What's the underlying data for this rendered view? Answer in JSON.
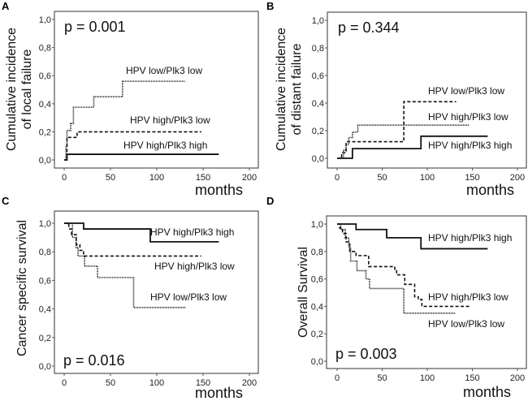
{
  "chart_data": [
    {
      "type": "line",
      "panel": "A",
      "ylabel_lines": [
        "Cumulative incidence",
        "of local failure"
      ],
      "xlabel": "months",
      "p_value": "p = 0.001",
      "xlim": [
        0,
        200
      ],
      "ylim": [
        0,
        1
      ],
      "xticks": [
        "0",
        "50",
        "100",
        "150",
        "200"
      ],
      "yticks": [
        "0,0",
        "0,2",
        "0,4",
        "0,6",
        "0,8",
        "1,0"
      ],
      "series": [
        {
          "name": "HPV low/Plk3 low",
          "style": "dotted",
          "steps": [
            [
              0,
              0
            ],
            [
              2,
              0.1
            ],
            [
              3,
              0.21
            ],
            [
              7,
              0.26
            ],
            [
              10,
              0.375
            ],
            [
              32,
              0.45
            ],
            [
              63,
              0.56
            ]
          ],
          "end": 131
        },
        {
          "name": "HPV high/Plk3 low",
          "style": "dashed",
          "steps": [
            [
              0,
              0
            ],
            [
              3,
              0.16
            ],
            [
              14,
              0.2
            ]
          ],
          "end": 148
        },
        {
          "name": "HPV high/Plk3 high",
          "style": "solid",
          "steps": [
            [
              0,
              0
            ],
            [
              3,
              0.04
            ]
          ],
          "end": 167
        }
      ]
    },
    {
      "type": "line",
      "panel": "B",
      "ylabel_lines": [
        "Cumulative incidence",
        "of distant failure"
      ],
      "xlabel": "months",
      "p_value": "p = 0.344",
      "xlim": [
        0,
        200
      ],
      "ylim": [
        0,
        1
      ],
      "xticks": [
        "0",
        "50",
        "100",
        "150",
        "200"
      ],
      "yticks": [
        "0,0",
        "0,2",
        "0,4",
        "0,6",
        "0,8",
        "1,0"
      ],
      "series": [
        {
          "name": "HPV low/Plk3 low",
          "style": "dashed",
          "steps": [
            [
              0,
              0
            ],
            [
              5,
              0.04
            ],
            [
              10,
              0.12
            ],
            [
              74,
              0.41
            ]
          ],
          "end": 132
        },
        {
          "name": "HPV high/Plk3 low",
          "style": "dotted",
          "steps": [
            [
              0,
              0
            ],
            [
              7,
              0.06
            ],
            [
              10,
              0.1
            ],
            [
              13,
              0.15
            ],
            [
              17,
              0.19
            ],
            [
              23,
              0.24
            ]
          ],
          "end": 147
        },
        {
          "name": "HPV high/Plk3 high",
          "style": "solid",
          "steps": [
            [
              0,
              0
            ],
            [
              17,
              0.07
            ],
            [
              93,
              0.16
            ]
          ],
          "end": 167
        }
      ]
    },
    {
      "type": "line",
      "panel": "C",
      "ylabel_lines": [
        "Cancer specific survival"
      ],
      "xlabel": "months",
      "p_value": "p  = 0.016",
      "xlim": [
        0,
        200
      ],
      "ylim": [
        0,
        1
      ],
      "xticks": [
        "0",
        "50",
        "100",
        "150",
        "200"
      ],
      "yticks": [
        "0,0",
        "0,2",
        "0,4",
        "0,6",
        "0,8",
        "1,0"
      ],
      "series": [
        {
          "name": "HPV high/Plk3 high",
          "style": "solid",
          "steps": [
            [
              0,
              1
            ],
            [
              21,
              0.96
            ],
            [
              93,
              0.87
            ]
          ],
          "end": 167
        },
        {
          "name": "HPV high/Plk3 low",
          "style": "dashed",
          "steps": [
            [
              0,
              1
            ],
            [
              5,
              0.96
            ],
            [
              8,
              0.92
            ],
            [
              13,
              0.85
            ],
            [
              17,
              0.81
            ],
            [
              21,
              0.77
            ]
          ],
          "end": 148
        },
        {
          "name": "HPV low/Plk3 low",
          "style": "dotted",
          "steps": [
            [
              0,
              1
            ],
            [
              9,
              0.9
            ],
            [
              13,
              0.83
            ],
            [
              15,
              0.77
            ],
            [
              22,
              0.7
            ],
            [
              36,
              0.62
            ],
            [
              75,
              0.41
            ]
          ],
          "end": 131
        }
      ]
    },
    {
      "type": "line",
      "panel": "D",
      "ylabel_lines": [
        "Overall Survival"
      ],
      "xlabel": "months",
      "p_value": "p = 0.003",
      "xlim": [
        0,
        200
      ],
      "ylim": [
        0,
        1
      ],
      "xticks": [
        "0",
        "50",
        "100",
        "150",
        "200"
      ],
      "yticks": [
        "0,0",
        "0,2",
        "0,4",
        "0,6",
        "0,8",
        "1,0"
      ],
      "series": [
        {
          "name": "HPV high/Plk3 high",
          "style": "solid",
          "steps": [
            [
              0,
              1
            ],
            [
              21,
              0.96
            ],
            [
              55,
              0.9
            ],
            [
              93,
              0.82
            ]
          ],
          "end": 167
        },
        {
          "name": "HPV high/Plk3 low",
          "style": "dashed",
          "steps": [
            [
              0,
              1
            ],
            [
              3,
              0.97
            ],
            [
              6,
              0.93
            ],
            [
              10,
              0.87
            ],
            [
              14,
              0.8
            ],
            [
              21,
              0.77
            ],
            [
              35,
              0.69
            ],
            [
              64,
              0.66
            ],
            [
              66,
              0.63
            ],
            [
              75,
              0.56
            ],
            [
              86,
              0.47
            ],
            [
              90,
              0.45
            ],
            [
              94,
              0.4
            ]
          ],
          "end": 148
        },
        {
          "name": "HPV low/Plk3 low",
          "style": "dotted",
          "steps": [
            [
              0,
              1
            ],
            [
              4,
              0.96
            ],
            [
              9,
              0.9
            ],
            [
              13,
              0.83
            ],
            [
              15,
              0.73
            ],
            [
              22,
              0.66
            ],
            [
              32,
              0.6
            ],
            [
              36,
              0.53
            ],
            [
              74,
              0.35
            ]
          ],
          "end": 131
        }
      ]
    }
  ]
}
